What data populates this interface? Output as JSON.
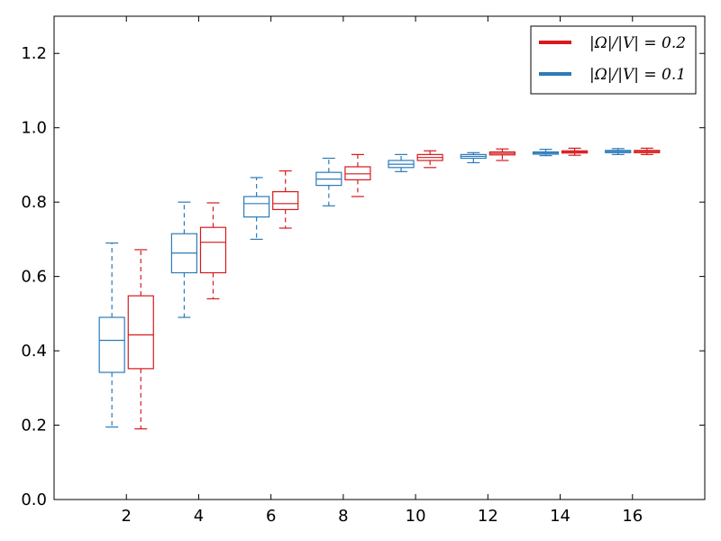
{
  "chart_data": {
    "type": "boxplot",
    "title": "",
    "xlabel": "",
    "ylabel": "",
    "xlim": [
      0,
      18
    ],
    "ylim": [
      0,
      1.3
    ],
    "xticks": [
      2,
      4,
      6,
      8,
      10,
      12,
      14,
      16
    ],
    "yticks": [
      0.0,
      0.2,
      0.4,
      0.6,
      0.8,
      1.0,
      1.2
    ],
    "ytick_labels": [
      "0.0",
      "0.2",
      "0.4",
      "0.6",
      "0.8",
      "1.0",
      "1.2"
    ],
    "xtick_labels": [
      "2",
      "4",
      "6",
      "8",
      "10",
      "12",
      "14",
      "16"
    ],
    "grid": false,
    "legend_position": "top-right",
    "series": [
      {
        "name": "|Ω|/|V| = 0.1",
        "label": "|Ω|/|V| = 0.1",
        "color": "#2b7bb9",
        "offset": -0.4,
        "boxes": [
          {
            "x": 2,
            "whislo": 0.195,
            "q1": 0.342,
            "med": 0.428,
            "q3": 0.49,
            "whishi": 0.69
          },
          {
            "x": 4,
            "whislo": 0.49,
            "q1": 0.61,
            "med": 0.663,
            "q3": 0.715,
            "whishi": 0.8
          },
          {
            "x": 6,
            "whislo": 0.7,
            "q1": 0.76,
            "med": 0.796,
            "q3": 0.815,
            "whishi": 0.866
          },
          {
            "x": 8,
            "whislo": 0.79,
            "q1": 0.845,
            "med": 0.862,
            "q3": 0.88,
            "whishi": 0.918
          },
          {
            "x": 10,
            "whislo": 0.882,
            "q1": 0.893,
            "med": 0.902,
            "q3": 0.912,
            "whishi": 0.928
          },
          {
            "x": 12,
            "whislo": 0.906,
            "q1": 0.918,
            "med": 0.923,
            "q3": 0.928,
            "whishi": 0.933
          },
          {
            "x": 14,
            "whislo": 0.925,
            "q1": 0.929,
            "med": 0.932,
            "q3": 0.935,
            "whishi": 0.942
          },
          {
            "x": 16,
            "whislo": 0.928,
            "q1": 0.933,
            "med": 0.936,
            "q3": 0.939,
            "whishi": 0.944
          }
        ]
      },
      {
        "name": "|Ω|/|V| = 0.2",
        "label": "|Ω|/|V| = 0.2",
        "color": "#d7191c",
        "offset": 0.4,
        "boxes": [
          {
            "x": 2,
            "whislo": 0.19,
            "q1": 0.352,
            "med": 0.443,
            "q3": 0.548,
            "whishi": 0.672
          },
          {
            "x": 4,
            "whislo": 0.54,
            "q1": 0.61,
            "med": 0.692,
            "q3": 0.732,
            "whishi": 0.798
          },
          {
            "x": 6,
            "whislo": 0.73,
            "q1": 0.78,
            "med": 0.796,
            "q3": 0.828,
            "whishi": 0.884
          },
          {
            "x": 8,
            "whislo": 0.815,
            "q1": 0.86,
            "med": 0.876,
            "q3": 0.895,
            "whishi": 0.928
          },
          {
            "x": 10,
            "whislo": 0.893,
            "q1": 0.912,
            "med": 0.92,
            "q3": 0.928,
            "whishi": 0.938
          },
          {
            "x": 12,
            "whislo": 0.912,
            "q1": 0.927,
            "med": 0.931,
            "q3": 0.935,
            "whishi": 0.943
          },
          {
            "x": 14,
            "whislo": 0.926,
            "q1": 0.932,
            "med": 0.935,
            "q3": 0.938,
            "whishi": 0.945
          },
          {
            "x": 16,
            "whislo": 0.928,
            "q1": 0.933,
            "med": 0.936,
            "q3": 0.939,
            "whishi": 0.945
          }
        ]
      }
    ]
  },
  "legend": {
    "entries": [
      {
        "label": "|Ω|/|V| = 0.2",
        "color": "#d7191c"
      },
      {
        "label": "|Ω|/|V| = 0.1",
        "color": "#2b7bb9"
      }
    ]
  }
}
